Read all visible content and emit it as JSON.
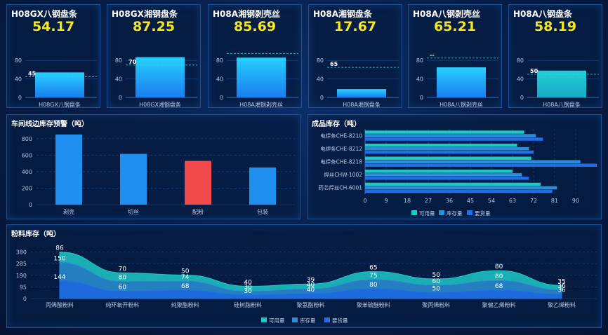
{
  "cards": [
    {
      "title": "H08GX八钢盘条",
      "value": "54.17",
      "bar_value": 54,
      "ref_value": 45,
      "ref_label": "45",
      "xlabel": "H08GX八钢盘条",
      "color": "blue",
      "ticks": [
        "0",
        "40",
        "80"
      ]
    },
    {
      "title": "H08GX湘钢盘条",
      "value": "87.25",
      "bar_value": 87,
      "ref_value": 70,
      "ref_label": "70",
      "xlabel": "H08GX湘钢盘条",
      "color": "blue",
      "ticks": [
        "0",
        "40",
        "80"
      ]
    },
    {
      "title": "H08A湘钢剥壳丝",
      "value": "85.69",
      "bar_value": 86,
      "ref_value": 95,
      "ref_label": "",
      "xlabel": "H08A湘钢剥壳丝",
      "color": "blue",
      "ticks": [
        "0",
        "40",
        "80"
      ]
    },
    {
      "title": "H08A湘钢盘条",
      "value": "17.67",
      "bar_value": 18,
      "ref_value": 65,
      "ref_label": "65",
      "xlabel": "H08A湘钢盘条",
      "color": "blue",
      "ticks": [
        "0",
        "40",
        "80"
      ]
    },
    {
      "title": "H08A八钢剥壳丝",
      "value": "65.21",
      "bar_value": 65,
      "ref_value": 85,
      "ref_label": "--",
      "xlabel": "H08A八钢剥壳丝",
      "color": "blue",
      "ticks": [
        "0",
        "40",
        "80"
      ]
    },
    {
      "title": "H08A八钢盘条",
      "value": "58.19",
      "bar_value": 58,
      "ref_value": 50,
      "ref_label": "50",
      "xlabel": "H08A八钢盘条",
      "color": "teal",
      "ticks": [
        "0",
        "40",
        "80"
      ]
    }
  ],
  "workshop": {
    "title": "车间线边库存预警（吨）",
    "categories": [
      "剥壳",
      "切丝",
      "配粉",
      "包装"
    ],
    "values": [
      850,
      615,
      530,
      450
    ],
    "highlight_index": 2,
    "highlight_color": "#f24a4a",
    "bar_color": "#1f8ff0",
    "ticks": [
      "0",
      "200",
      "400",
      "600",
      "800"
    ]
  },
  "finished": {
    "title": "成品库存（吨）",
    "categories": [
      "电焊条CHE-8210",
      "电焊条CHE-8212",
      "电焊条CHE-8218",
      "焊丝CHW-1002",
      "药芯焊丝CH-6001"
    ],
    "series": [
      {
        "name": "可用量",
        "values": [
          68,
          65,
          71,
          63,
          75
        ],
        "color": "#1ec8c8"
      },
      {
        "name": "库存量",
        "values": [
          73,
          70,
          92,
          67,
          82
        ],
        "color": "#2a8fd6"
      },
      {
        "name": "要货量",
        "values": [
          76,
          72,
          99,
          70,
          80
        ],
        "color": "#1f6fe6"
      }
    ],
    "xticks": [
      "0",
      "9",
      "18",
      "27",
      "36",
      "45",
      "54",
      "63",
      "72",
      "81",
      "90"
    ],
    "xmax": 99,
    "legend": [
      "可用量",
      "库存量",
      "要货量"
    ]
  },
  "powder": {
    "title": "粉料库存（吨）",
    "categories": [
      "丙烯酸粉料",
      "纯环氧开粉料",
      "纯聚酯粉料",
      "硅树脂粉料",
      "聚氨酯粉料",
      "聚苯硫醚粉料",
      "聚丙烯粉料",
      "聚偏乙烯粉料",
      "聚乙烯粉料"
    ],
    "series": [
      {
        "name": "可用量",
        "values": [
          86,
          70,
          50,
          40,
          39,
          65,
          50,
          80,
          35
        ],
        "color": "#1ec8c8"
      },
      {
        "name": "库存量",
        "values": [
          150,
          80,
          74,
          30,
          40,
          75,
          60,
          80,
          36
        ],
        "color": "#2a8fd6"
      },
      {
        "name": "要货量",
        "values": [
          144,
          60,
          68,
          30,
          40,
          80,
          50,
          68,
          36
        ],
        "color": "#1f6fe6"
      }
    ],
    "ymax": 475,
    "yticks": [
      "0",
      "95",
      "190",
      "285",
      "380"
    ],
    "legend": [
      "可用量",
      "库存量",
      "要货量"
    ]
  }
}
